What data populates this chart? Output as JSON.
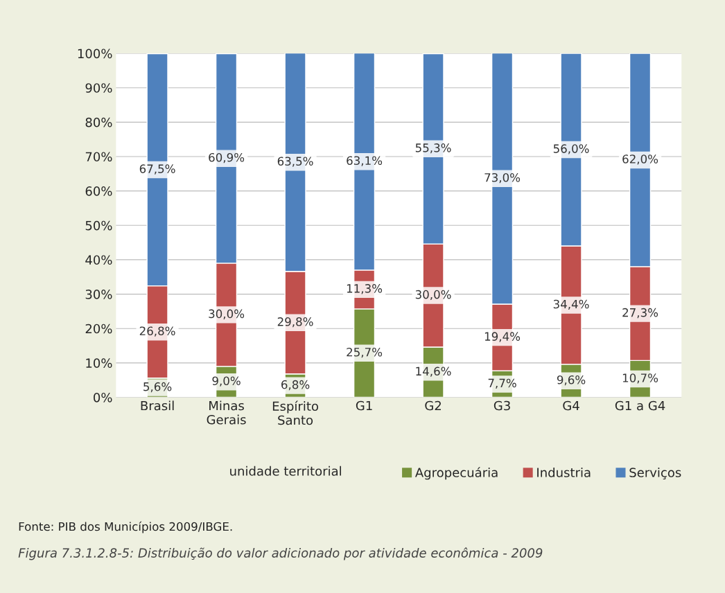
{
  "chart_data": {
    "type": "bar",
    "stacked": true,
    "categories": [
      "Brasil",
      "Minas Gerais",
      "Espírito Santo",
      "G1",
      "G2",
      "G3",
      "G4",
      "G1 a G4"
    ],
    "series": [
      {
        "name": "Agropecuária",
        "color": "#77933c",
        "values": [
          5.6,
          9.0,
          6.8,
          25.7,
          14.6,
          7.7,
          9.6,
          10.7
        ],
        "value_labels": [
          "5,6%",
          "9,0%",
          "6,8%",
          "25,7%",
          "14,6%",
          "7,7%",
          "9,6%",
          "10,7%"
        ]
      },
      {
        "name": "Industria",
        "color": "#c0504d",
        "values": [
          26.8,
          30.0,
          29.8,
          11.3,
          30.0,
          19.4,
          34.4,
          27.3
        ],
        "value_labels": [
          "26,8%",
          "30,0%",
          "29,8%",
          "11,3%",
          "30,0%",
          "19,4%",
          "34,4%",
          "27,3%"
        ]
      },
      {
        "name": "Serviços",
        "color": "#4f81bd",
        "values": [
          67.5,
          60.9,
          63.5,
          63.1,
          55.3,
          73.0,
          56.0,
          62.0
        ],
        "value_labels": [
          "67,5%",
          "60,9%",
          "63,5%",
          "63,1%",
          "55,3%",
          "73,0%",
          "56,0%",
          "62,0%"
        ]
      }
    ],
    "ylim": [
      0,
      100
    ],
    "yticks": [
      {
        "value": 0,
        "label": "0%"
      },
      {
        "value": 10,
        "label": "10%"
      },
      {
        "value": 20,
        "label": "20%"
      },
      {
        "value": 30,
        "label": "30%"
      },
      {
        "value": 40,
        "label": "40%"
      },
      {
        "value": 50,
        "label": "50%"
      },
      {
        "value": 60,
        "label": "60%"
      },
      {
        "value": 70,
        "label": "70%"
      },
      {
        "value": 80,
        "label": "80%"
      },
      {
        "value": 90,
        "label": "90%"
      },
      {
        "value": 100,
        "label": "100%"
      }
    ],
    "grid": "y",
    "legend": "bottom right",
    "xlabel": "unidade territorial",
    "annotations": [
      "Fonte: PIB dos Municípios 2009/IBGE.",
      "Figura 7.3.1.2.8-5: Distribuição do valor adicionado por atividade econômica - 2009"
    ]
  }
}
